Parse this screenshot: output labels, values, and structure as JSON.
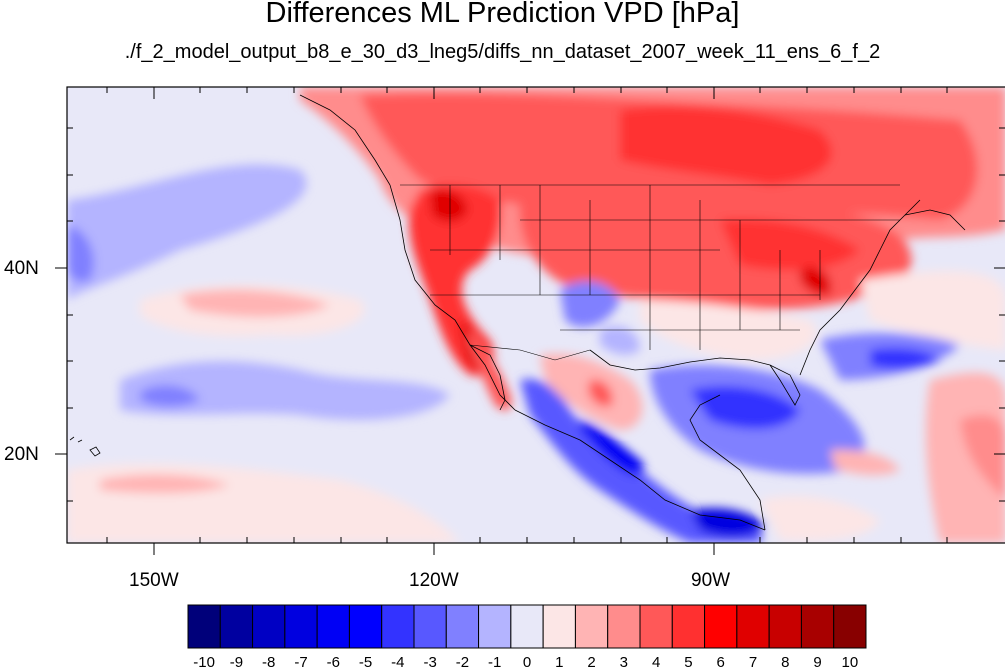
{
  "title": "Differences ML Prediction VPD [hPa]",
  "subtitle": "./f_2_model_output_b8_e_30_d3_lneg5/diffs_nn_dataset_2007_week_11_ens_6_f_2",
  "axes": {
    "lon_labels": [
      "150W",
      "120W",
      "90W"
    ],
    "lat_labels": [
      "40N",
      "20N"
    ]
  },
  "colorbar": {
    "labels": [
      "-10",
      "-9",
      "-8",
      "-7",
      "-6",
      "-5",
      "-4",
      "-3",
      "-2",
      "-1",
      "0",
      "1",
      "2",
      "3",
      "4",
      "5",
      "6",
      "7",
      "8",
      "9",
      "10"
    ],
    "colors": [
      "#00007a",
      "#0000a0",
      "#0000c4",
      "#0000e0",
      "#0000f5",
      "#0000ff",
      "#3333ff",
      "#5858ff",
      "#8080ff",
      "#b4b4ff",
      "#e8e8f8",
      "#fce6e6",
      "#ffb4b4",
      "#ff8c8c",
      "#ff5858",
      "#ff3030",
      "#ff0000",
      "#e00000",
      "#c80000",
      "#a80000",
      "#880000"
    ]
  },
  "map_colors": {
    "ocean_neutral": "#e8e8f8",
    "light_blue": "#b4b4ff",
    "blue": "#8080ff",
    "deep_blue": "#1a1aff",
    "light_red": "#fce6e6",
    "pink": "#ffb4b4",
    "red": "#ff5858",
    "strong_red": "#ff3030",
    "deep_red": "#e00000"
  }
}
